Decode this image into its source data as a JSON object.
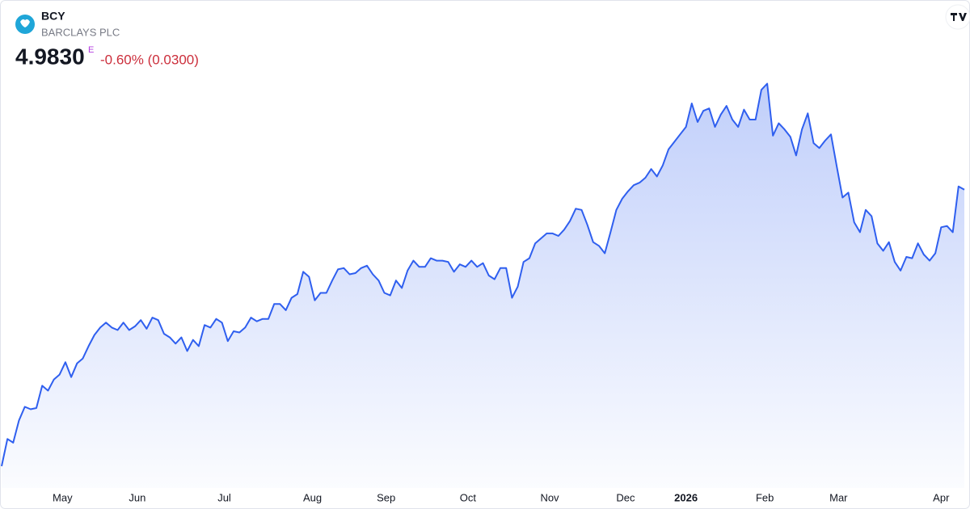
{
  "header": {
    "symbol": "BCY",
    "name": "BARCLAYS PLC",
    "price": "4.9830",
    "flag": "E",
    "change": "-0.60% (0.0300)"
  },
  "chart_data": {
    "type": "area",
    "color": "#2f5fef",
    "values": [
      2.75,
      2.97,
      2.94,
      3.12,
      3.23,
      3.21,
      3.22,
      3.4,
      3.36,
      3.45,
      3.49,
      3.59,
      3.47,
      3.58,
      3.62,
      3.72,
      3.81,
      3.87,
      3.91,
      3.87,
      3.85,
      3.91,
      3.85,
      3.88,
      3.93,
      3.86,
      3.95,
      3.93,
      3.82,
      3.79,
      3.74,
      3.79,
      3.68,
      3.77,
      3.72,
      3.89,
      3.87,
      3.94,
      3.91,
      3.76,
      3.84,
      3.83,
      3.87,
      3.95,
      3.92,
      3.94,
      3.94,
      4.06,
      4.06,
      4.01,
      4.11,
      4.14,
      4.32,
      4.28,
      4.09,
      4.15,
      4.15,
      4.25,
      4.34,
      4.35,
      4.3,
      4.31,
      4.35,
      4.37,
      4.3,
      4.25,
      4.15,
      4.13,
      4.25,
      4.19,
      4.33,
      4.41,
      4.36,
      4.36,
      4.43,
      4.41,
      4.41,
      4.4,
      4.32,
      4.38,
      4.36,
      4.41,
      4.36,
      4.39,
      4.29,
      4.26,
      4.35,
      4.35,
      4.11,
      4.2,
      4.4,
      4.43,
      4.55,
      4.59,
      4.63,
      4.63,
      4.61,
      4.66,
      4.73,
      4.83,
      4.82,
      4.7,
      4.56,
      4.53,
      4.47,
      4.64,
      4.82,
      4.91,
      4.97,
      5.02,
      5.04,
      5.08,
      5.15,
      5.09,
      5.18,
      5.31,
      5.37,
      5.43,
      5.49,
      5.68,
      5.53,
      5.62,
      5.64,
      5.49,
      5.59,
      5.66,
      5.55,
      5.49,
      5.63,
      5.55,
      5.55,
      5.79,
      5.84,
      5.42,
      5.52,
      5.47,
      5.41,
      5.26,
      5.47,
      5.6,
      5.36,
      5.32,
      5.38,
      5.43,
      5.17,
      4.92,
      4.96,
      4.72,
      4.64,
      4.82,
      4.77,
      4.55,
      4.49,
      4.56,
      4.4,
      4.33,
      4.44,
      4.43,
      4.55,
      4.46,
      4.41,
      4.47,
      4.68,
      4.69,
      4.64,
      5.01,
      4.983
    ],
    "ylim": [
      2.6,
      6.0
    ],
    "xticks": [
      {
        "value": 10.5,
        "label": "May"
      },
      {
        "value": 23.4,
        "label": "Jun"
      },
      {
        "value": 38.4,
        "label": "Jul"
      },
      {
        "value": 53.6,
        "label": "Aug"
      },
      {
        "value": 66.3,
        "label": "Sep"
      },
      {
        "value": 80.4,
        "label": "Oct"
      },
      {
        "value": 94.5,
        "label": "Nov"
      },
      {
        "value": 107.6,
        "label": "Dec"
      },
      {
        "value": 118,
        "label": "2026"
      },
      {
        "value": 131.6,
        "label": "Feb"
      },
      {
        "value": 144.3,
        "label": "Mar"
      },
      {
        "value": 162,
        "label": "Apr"
      }
    ]
  }
}
